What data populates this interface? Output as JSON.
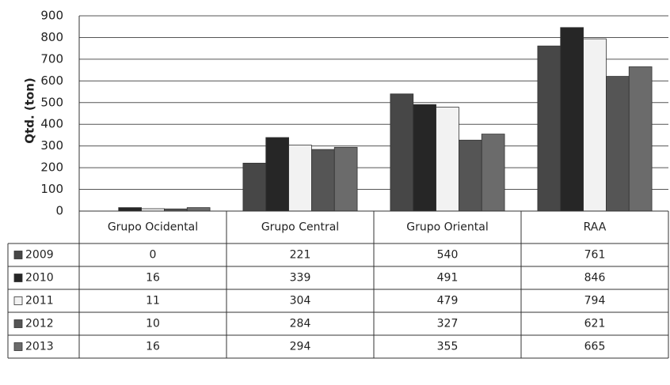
{
  "chart_data": {
    "type": "bar",
    "y_label": "Qtd. (ton)",
    "categories": [
      "Grupo Ocidental",
      "Grupo Central",
      "Grupo Oriental",
      "RAA"
    ],
    "series": [
      {
        "name": "2009",
        "color": "#474747",
        "values": [
          0,
          221,
          540,
          761
        ]
      },
      {
        "name": "2010",
        "color": "#262626",
        "values": [
          16,
          339,
          491,
          846
        ]
      },
      {
        "name": "2011",
        "color": "#f2f2f2",
        "values": [
          11,
          304,
          479,
          794
        ]
      },
      {
        "name": "2012",
        "color": "#555555",
        "values": [
          10,
          284,
          327,
          621
        ]
      },
      {
        "name": "2013",
        "color": "#6b6b6b",
        "values": [
          16,
          294,
          355,
          665
        ]
      }
    ],
    "ylim": [
      0,
      900
    ],
    "yticks": [
      0,
      100,
      200,
      300,
      400,
      500,
      600,
      700,
      800,
      900
    ],
    "grid": true,
    "data_table": true
  }
}
